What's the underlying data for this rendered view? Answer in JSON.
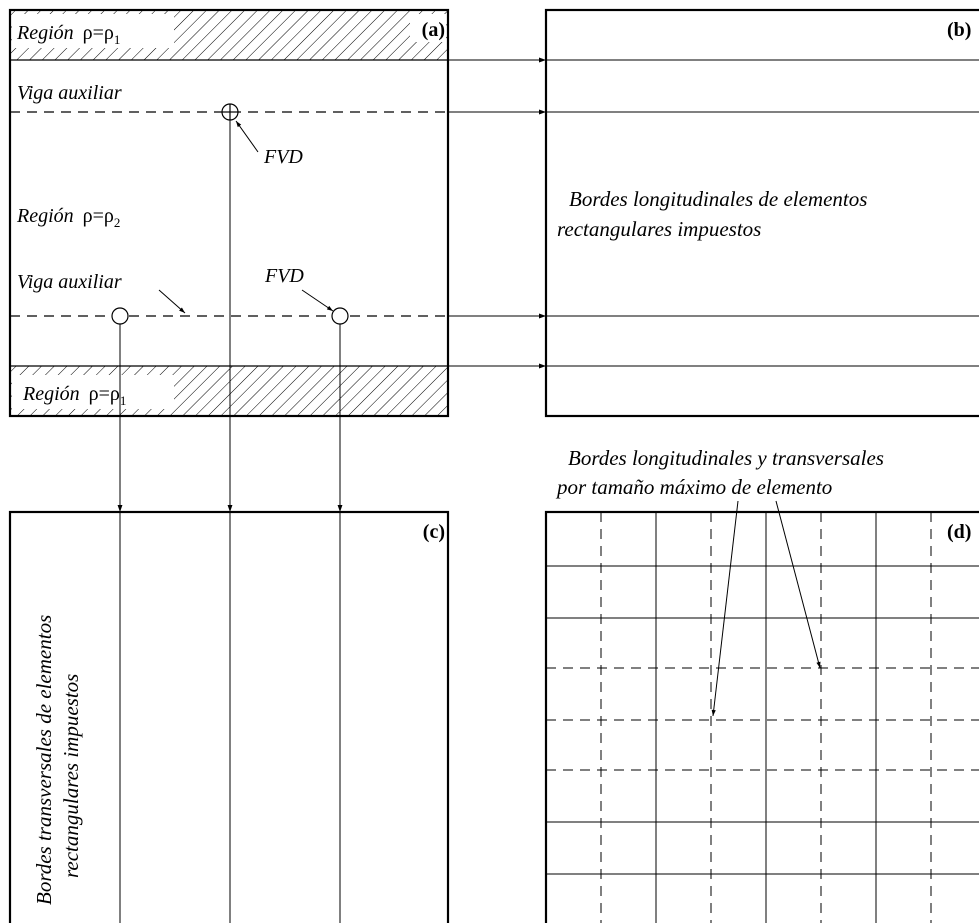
{
  "panel_a": {
    "label": "(a)",
    "region_top": {
      "word": "Región",
      "rho": "ρ=ρ",
      "sub": "1"
    },
    "viga_top": "Viga auxiliar",
    "fvd_top": "FVD",
    "region_mid": {
      "word": "Región",
      "rho": "ρ=ρ",
      "sub": "2"
    },
    "viga_bottom": "Viga auxiliar",
    "fvd_bottom": "FVD",
    "region_bottom": {
      "word": "Región",
      "rho": "ρ=ρ",
      "sub": "1"
    }
  },
  "panel_b": {
    "label": "(b)",
    "text_line1": "Bordes longitudinales de elementos",
    "text_line2": "rectangulares impuestos"
  },
  "panel_c": {
    "label": "(c)",
    "text_line1": "Bordes transversales de elementos",
    "text_line2": "rectangulares impuestos"
  },
  "panel_d": {
    "label": "(d)",
    "caption_line1": "Bordes longitudinales y transversales",
    "caption_line2": "por tamaño máximo de elemento"
  }
}
